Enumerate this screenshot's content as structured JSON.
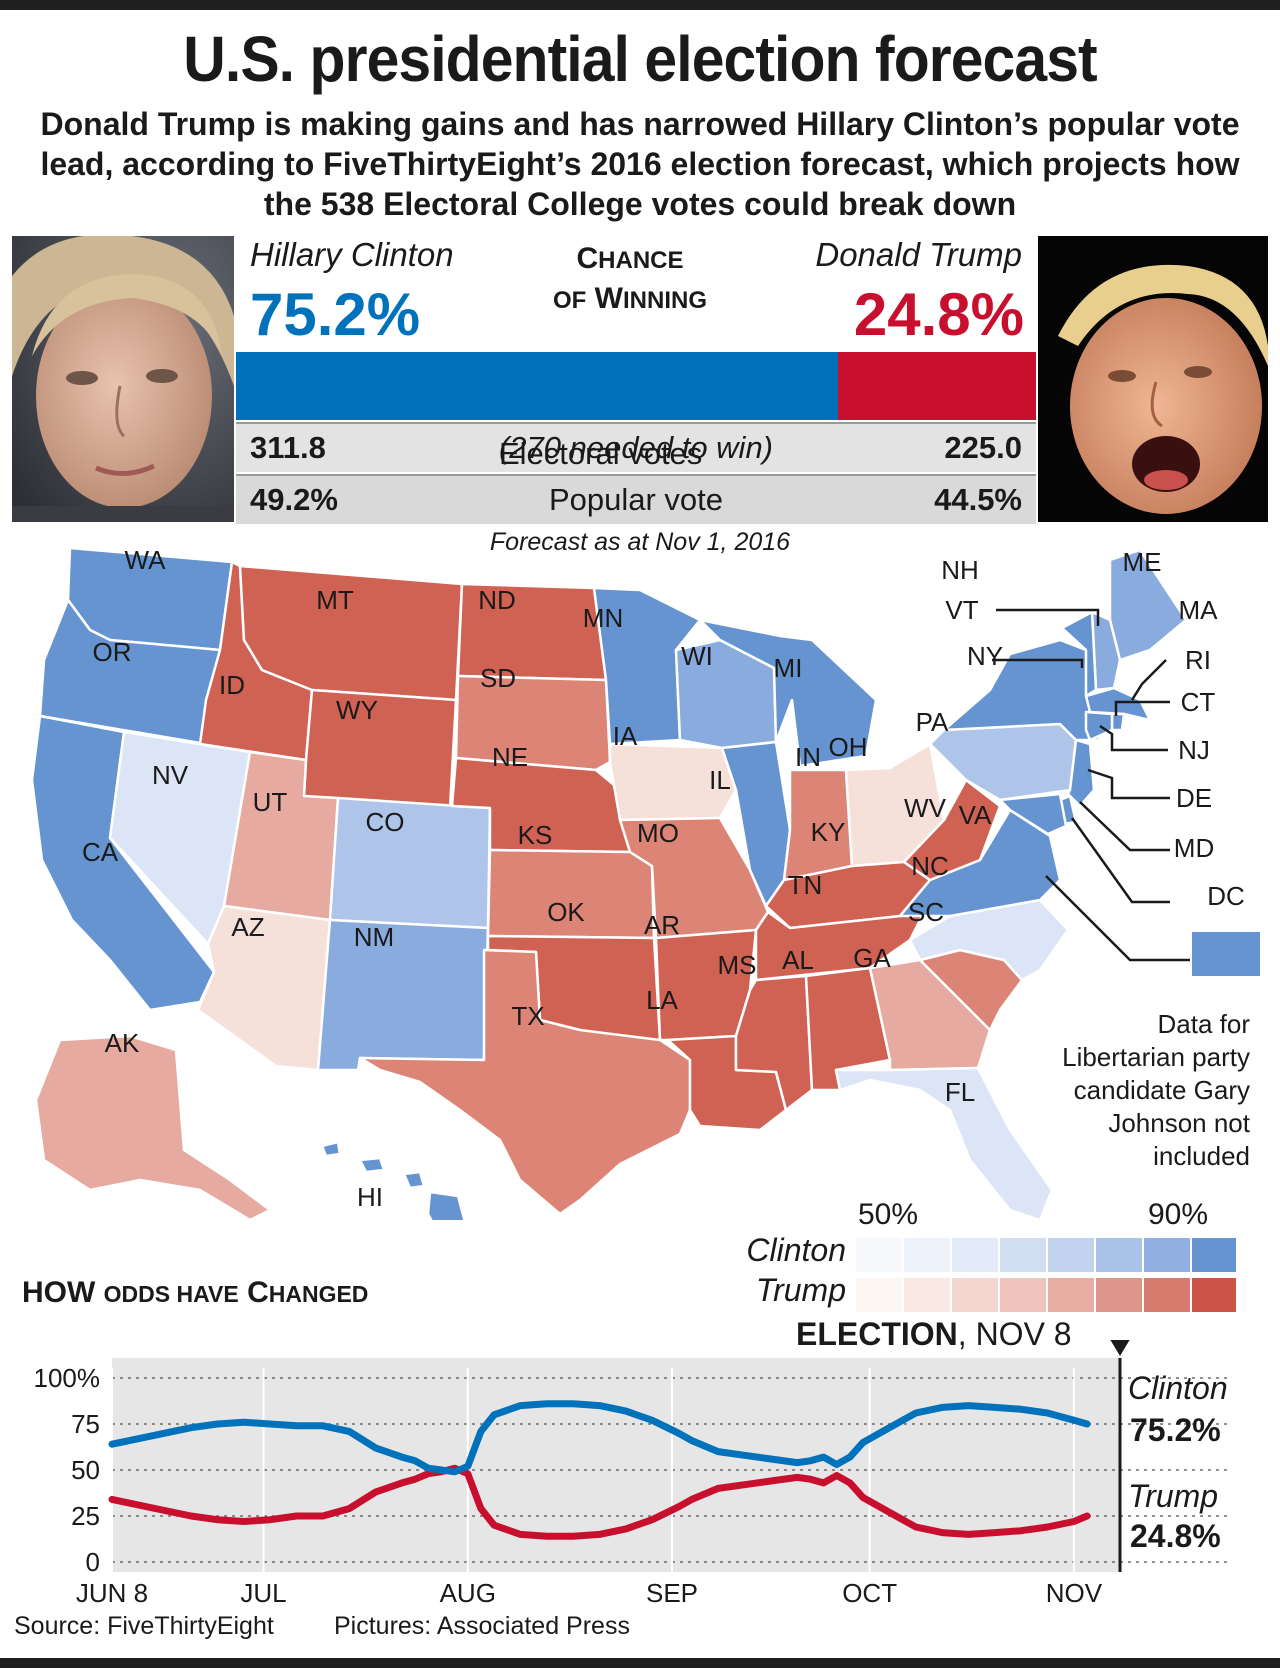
{
  "title": "U.S. presidential election forecast",
  "subtitle": "Donald Trump is making gains and has narrowed Hillary Clinton’s popular vote lead, according to FiveThirtyEight’s 2016 election forecast, which projects how the 538 Electoral College votes could break down",
  "chance": {
    "line1": "Chance",
    "line2": "of Winning"
  },
  "clinton": {
    "name": "Hillary Clinton",
    "chance": "75.2%",
    "electoral": "311.8",
    "popular": "49.2%",
    "chance_value": 75.2
  },
  "trump": {
    "name": "Donald Trump",
    "chance": "24.8%",
    "electoral": "225.0",
    "popular": "44.5%",
    "chance_value": 24.8
  },
  "electoral_label": "Electoral votes",
  "electoral_note": "(270 needed to win)",
  "popular_label": "Popular vote",
  "forecast_date": "Forecast as at Nov 1, 2016",
  "map_states": {
    "WA": {
      "label": "WA",
      "lean": "clinton-strong"
    },
    "OR": {
      "label": "OR",
      "lean": "clinton-strong"
    },
    "CA": {
      "label": "CA",
      "lean": "clinton-strong"
    },
    "NV": {
      "label": "NV",
      "lean": "clinton-tossup"
    },
    "ID": {
      "label": "ID",
      "lean": "trump-strong"
    },
    "MT": {
      "label": "MT",
      "lean": "trump-strong"
    },
    "WY": {
      "label": "WY",
      "lean": "trump-strong"
    },
    "UT": {
      "label": "UT",
      "lean": "trump-lean"
    },
    "AZ": {
      "label": "AZ",
      "lean": "trump-tossup"
    },
    "CO": {
      "label": "CO",
      "lean": "clinton-lean"
    },
    "NM": {
      "label": "NM",
      "lean": "clinton-likely"
    },
    "ND": {
      "label": "ND",
      "lean": "trump-strong"
    },
    "SD": {
      "label": "SD",
      "lean": "trump-likely"
    },
    "NE": {
      "label": "NE",
      "lean": "trump-strong"
    },
    "KS": {
      "label": "KS",
      "lean": "trump-likely"
    },
    "OK": {
      "label": "OK",
      "lean": "trump-strong"
    },
    "TX": {
      "label": "TX",
      "lean": "trump-likely"
    },
    "MN": {
      "label": "MN",
      "lean": "clinton-strong"
    },
    "IA": {
      "label": "IA",
      "lean": "trump-tossup"
    },
    "MO": {
      "label": "MO",
      "lean": "trump-likely"
    },
    "AR": {
      "label": "AR",
      "lean": "trump-strong"
    },
    "LA": {
      "label": "LA",
      "lean": "trump-strong"
    },
    "WI": {
      "label": "WI",
      "lean": "clinton-likely"
    },
    "IL": {
      "label": "IL",
      "lean": "clinton-strong"
    },
    "MI": {
      "label": "MI",
      "lean": "clinton-strong"
    },
    "IN": {
      "label": "IN",
      "lean": "trump-likely"
    },
    "OH": {
      "label": "OH",
      "lean": "trump-tossup"
    },
    "KY": {
      "label": "KY",
      "lean": "trump-strong"
    },
    "TN": {
      "label": "TN",
      "lean": "trump-strong"
    },
    "MS": {
      "label": "MS",
      "lean": "trump-strong"
    },
    "AL": {
      "label": "AL",
      "lean": "trump-strong"
    },
    "GA": {
      "label": "GA",
      "lean": "trump-lean"
    },
    "FL": {
      "label": "FL",
      "lean": "clinton-tossup"
    },
    "SC": {
      "label": "SC",
      "lean": "trump-likely"
    },
    "NC": {
      "label": "NC",
      "lean": "clinton-tossup"
    },
    "VA": {
      "label": "VA",
      "lean": "clinton-strong"
    },
    "WV": {
      "label": "WV",
      "lean": "trump-strong"
    },
    "PA": {
      "label": "PA",
      "lean": "clinton-lean"
    },
    "NY": {
      "label": "NY",
      "lean": "clinton-strong"
    },
    "ME": {
      "label": "ME",
      "lean": "clinton-likely"
    },
    "AK": {
      "label": "AK",
      "lean": "trump-lean"
    },
    "HI": {
      "label": "HI",
      "lean": "clinton-strong"
    },
    "NH": {
      "label": "NH",
      "lean": "clinton-likely"
    },
    "VT": {
      "label": "VT",
      "lean": "clinton-strong"
    },
    "MA": {
      "label": "MA",
      "lean": "clinton-strong"
    },
    "RI": {
      "label": "RI",
      "lean": "clinton-strong"
    },
    "CT": {
      "label": "CT",
      "lean": "clinton-strong"
    },
    "NJ": {
      "label": "NJ",
      "lean": "clinton-strong"
    },
    "DE": {
      "label": "DE",
      "lean": "clinton-strong"
    },
    "MD": {
      "label": "MD",
      "lean": "clinton-strong"
    },
    "DC": {
      "label": "DC",
      "lean": "clinton-strong"
    }
  },
  "colors": {
    "clinton-strong": "#6594d1",
    "clinton-likely": "#8aabde",
    "clinton-lean": "#aec4e8",
    "clinton-tossup": "#dbe5f5",
    "trump-tossup": "#f6e0da",
    "trump-lean": "#e6aaa0",
    "trump-likely": "#dc8577",
    "trump-strong": "#d06253",
    "clinton_line": "#0072bc",
    "trump_line": "#c8102e"
  },
  "note": "Data for Libertarian party candidate Gary Johnson not included",
  "legend": {
    "low": "50%",
    "high": "90%",
    "clinton_label": "Clinton",
    "trump_label": "Trump",
    "clinton_colors": [
      "#f7f9fd",
      "#edf2fa",
      "#e2eaf7",
      "#d2dff3",
      "#c1d3ee",
      "#a9c2e8",
      "#8fb0e0",
      "#6594d1"
    ],
    "trump_colors": [
      "#fdf7f4",
      "#f9e8e4",
      "#f4d7d1",
      "#eec4bc",
      "#e7aea4",
      "#df968a",
      "#d67b6d",
      "#cc5547"
    ]
  },
  "odds_title": {
    "word1": "How",
    "word2": "Odds have",
    "word3": "Changed"
  },
  "election_label": {
    "bold": "ELECTION",
    "rest": ", NOV 8"
  },
  "end_labels": {
    "clinton": "Clinton",
    "clinton_pct": "75.2%",
    "trump": "Trump",
    "trump_pct": "24.8%"
  },
  "chart_data": {
    "type": "line",
    "title": "How Odds have Changed",
    "y_ticks": [
      "100%",
      "75",
      "50",
      "25",
      "0"
    ],
    "ylim": [
      0,
      100
    ],
    "x_ticks": [
      {
        "label": "JUN 8",
        "day": 0
      },
      {
        "label": "JUL",
        "day": 23
      },
      {
        "label": "AUG",
        "day": 54
      },
      {
        "label": "SEP",
        "day": 85
      },
      {
        "label": "OCT",
        "day": 115
      },
      {
        "label": "NOV",
        "day": 146
      }
    ],
    "x_range_days": [
      0,
      153
    ],
    "series": [
      {
        "name": "Clinton",
        "points": [
          [
            0,
            64
          ],
          [
            4,
            67
          ],
          [
            8,
            70
          ],
          [
            12,
            73
          ],
          [
            16,
            75
          ],
          [
            20,
            76
          ],
          [
            24,
            75
          ],
          [
            28,
            74
          ],
          [
            32,
            74
          ],
          [
            36,
            71
          ],
          [
            40,
            62
          ],
          [
            44,
            57
          ],
          [
            46,
            55
          ],
          [
            48,
            51
          ],
          [
            50,
            50
          ],
          [
            52,
            49
          ],
          [
            54,
            52
          ],
          [
            56,
            71
          ],
          [
            58,
            80
          ],
          [
            62,
            85
          ],
          [
            66,
            86
          ],
          [
            70,
            86
          ],
          [
            74,
            85
          ],
          [
            78,
            82
          ],
          [
            82,
            77
          ],
          [
            86,
            70
          ],
          [
            88,
            66
          ],
          [
            92,
            60
          ],
          [
            96,
            58
          ],
          [
            100,
            56
          ],
          [
            104,
            54
          ],
          [
            106,
            55
          ],
          [
            108,
            57
          ],
          [
            110,
            53
          ],
          [
            112,
            57
          ],
          [
            114,
            65
          ],
          [
            118,
            73
          ],
          [
            122,
            81
          ],
          [
            126,
            84
          ],
          [
            130,
            85
          ],
          [
            134,
            84
          ],
          [
            138,
            83
          ],
          [
            142,
            81
          ],
          [
            146,
            77
          ],
          [
            148,
            75
          ]
        ]
      },
      {
        "name": "Trump",
        "points": [
          [
            0,
            34
          ],
          [
            4,
            31
          ],
          [
            8,
            28
          ],
          [
            12,
            25
          ],
          [
            16,
            23
          ],
          [
            20,
            22
          ],
          [
            24,
            23
          ],
          [
            28,
            25
          ],
          [
            32,
            25
          ],
          [
            36,
            29
          ],
          [
            40,
            38
          ],
          [
            44,
            43
          ],
          [
            46,
            45
          ],
          [
            48,
            48
          ],
          [
            50,
            49
          ],
          [
            52,
            51
          ],
          [
            54,
            48
          ],
          [
            56,
            29
          ],
          [
            58,
            20
          ],
          [
            62,
            15
          ],
          [
            66,
            14
          ],
          [
            70,
            14
          ],
          [
            74,
            15
          ],
          [
            78,
            18
          ],
          [
            82,
            23
          ],
          [
            86,
            30
          ],
          [
            88,
            34
          ],
          [
            92,
            40
          ],
          [
            96,
            42
          ],
          [
            100,
            44
          ],
          [
            104,
            46
          ],
          [
            106,
            45
          ],
          [
            108,
            43
          ],
          [
            110,
            47
          ],
          [
            112,
            43
          ],
          [
            114,
            35
          ],
          [
            118,
            27
          ],
          [
            122,
            19
          ],
          [
            126,
            16
          ],
          [
            130,
            15
          ],
          [
            134,
            16
          ],
          [
            138,
            17
          ],
          [
            142,
            19
          ],
          [
            146,
            22
          ],
          [
            148,
            25
          ]
        ]
      }
    ]
  },
  "footer": {
    "source": "Source: FiveThirtyEight",
    "pictures": "Pictures: Associated Press"
  }
}
